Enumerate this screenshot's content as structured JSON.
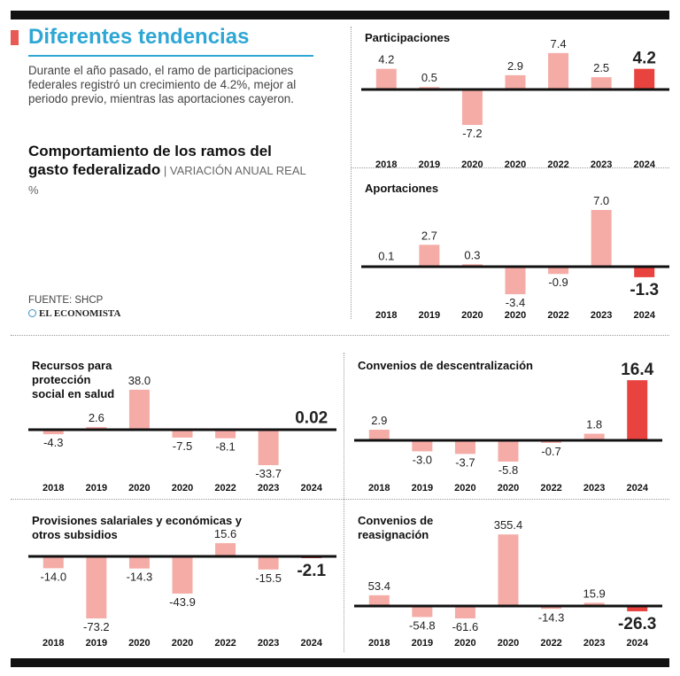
{
  "header": {
    "title": "Diferentes tendencias",
    "description": "Durante el año pasado, el ramo de participaciones federales registró un crecimiento de 4.2%, mejor al periodo previo, mientras las aportaciones cayeron.",
    "subtitle_bold": "Comportamiento de los ramos del gasto federalizado",
    "subtitle_light": " | VARIACIÓN ANUAL REAL %",
    "source": "FUENTE: SHCP",
    "brand": "EL ECONOMISTA"
  },
  "colors": {
    "bar": "#f5aca6",
    "highlight": "#e8433f",
    "accent": "#2fa7d4",
    "axis": "#111111"
  },
  "chart_data": [
    {
      "type": "bar",
      "title": "Participaciones",
      "categories": [
        "2018",
        "2019",
        "2020",
        "2020",
        "2022",
        "2023",
        "2024"
      ],
      "values": [
        4.2,
        0.5,
        -7.2,
        2.9,
        7.4,
        2.5,
        4.2
      ],
      "labels": [
        "4.2",
        "0.5",
        "-7.2",
        "2.9",
        "7.4",
        "2.5",
        "4.2"
      ],
      "highlight_last": true
    },
    {
      "type": "bar",
      "title": "Aportaciones",
      "categories": [
        "2018",
        "2019",
        "2020",
        "2020",
        "2022",
        "2023",
        "2024"
      ],
      "values": [
        0.1,
        2.7,
        0.3,
        -3.4,
        -0.9,
        7.0,
        -1.3
      ],
      "labels": [
        "0.1",
        "2.7",
        "0.3",
        "-3.4",
        "-0.9",
        "7.0",
        "-1.3"
      ],
      "highlight_last": true
    },
    {
      "type": "bar",
      "title": "Recursos para protección social en salud",
      "categories": [
        "2018",
        "2019",
        "2020",
        "2020",
        "2022",
        "2023",
        "2024"
      ],
      "values": [
        -4.3,
        2.6,
        38.0,
        -7.5,
        -8.1,
        -33.7,
        0.02
      ],
      "labels": [
        "-4.3",
        "2.6",
        "38.0",
        "-7.5",
        "-8.1",
        "-33.7",
        "0.02"
      ],
      "highlight_last": true
    },
    {
      "type": "bar",
      "title": "Convenios de descentralización",
      "categories": [
        "2018",
        "2019",
        "2020",
        "2020",
        "2022",
        "2023",
        "2024"
      ],
      "values": [
        2.9,
        -3.0,
        -3.7,
        -5.8,
        -0.7,
        1.8,
        16.4
      ],
      "labels": [
        "2.9",
        "-3.0",
        "-3.7",
        "-5.8",
        "-0.7",
        "1.8",
        "16.4"
      ],
      "highlight_last": true
    },
    {
      "type": "bar",
      "title": "Provisiones salariales y económicas y otros subsidios",
      "categories": [
        "2018",
        "2019",
        "2020",
        "2020",
        "2022",
        "2023",
        "2024"
      ],
      "values": [
        -14.0,
        -73.2,
        -14.3,
        -43.9,
        15.6,
        -15.5,
        -2.1
      ],
      "labels": [
        "-14.0",
        "-73.2",
        "-14.3",
        "-43.9",
        "15.6",
        "-15.5",
        "-2.1"
      ],
      "highlight_last": true
    },
    {
      "type": "bar",
      "title": "Convenios de reasignación",
      "categories": [
        "2018",
        "2019",
        "2020",
        "2020",
        "2022",
        "2023",
        "2024"
      ],
      "values": [
        53.4,
        -54.8,
        -61.6,
        355.4,
        -14.3,
        15.9,
        -26.3
      ],
      "labels": [
        "53.4",
        "-54.8",
        "-61.6",
        "355.4",
        "-14.3",
        "15.9",
        "-26.3"
      ],
      "highlight_last": true
    }
  ]
}
